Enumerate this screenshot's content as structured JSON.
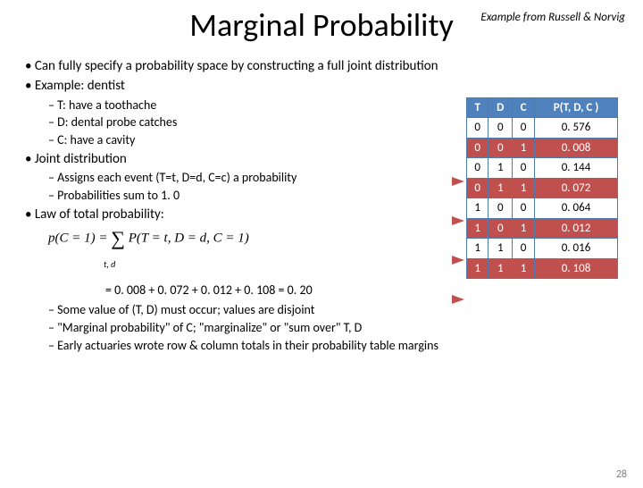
{
  "attribution": "Example from Russell & Norvig",
  "title": "Marginal Probability",
  "bullets": {
    "b1": "Can fully specify a probability space by constructing a full joint distribution",
    "b2": "Example: dentist",
    "b2a": "T: have a toothache",
    "b2b": "D: dental probe catches",
    "b2c": "C: have a cavity",
    "b3": "Joint distribution",
    "b3a": "Assigns each event (T=t, D=d, C=c) a probability",
    "b3b": "Probabilities sum to 1. 0",
    "b4": "Law of total probability:"
  },
  "formula": {
    "lhs": "p(C = 1) = ",
    "sum_sub": "t, d",
    "rhs": "P(T = t, D = d, C = 1)"
  },
  "calc": "=  0. 008 + 0. 072 + 0. 012 + 0. 108     = 0. 20",
  "bottom": {
    "c1": "Some value of (T, D) must occur; values are disjoint",
    "c2": "\"Marginal probability\" of C;  \"marginalize\" or \"sum over\" T, D",
    "c3": "Early actuaries wrote row & column totals in their probability table margins"
  },
  "table": {
    "headers": [
      "T",
      "D",
      "C",
      "P(T, D, C )"
    ],
    "rows": [
      {
        "cells": [
          "0",
          "0",
          "0",
          "0. 576"
        ],
        "hl": false
      },
      {
        "cells": [
          "0",
          "0",
          "1",
          "0. 008"
        ],
        "hl": true
      },
      {
        "cells": [
          "0",
          "1",
          "0",
          "0. 144"
        ],
        "hl": false
      },
      {
        "cells": [
          "0",
          "1",
          "1",
          "0. 072"
        ],
        "hl": true
      },
      {
        "cells": [
          "1",
          "0",
          "0",
          "0. 064"
        ],
        "hl": false
      },
      {
        "cells": [
          "1",
          "0",
          "1",
          "0. 012"
        ],
        "hl": true
      },
      {
        "cells": [
          "1",
          "1",
          "0",
          "0. 016"
        ],
        "hl": false
      },
      {
        "cells": [
          "1",
          "1",
          "1",
          "0. 108"
        ],
        "hl": true
      }
    ],
    "header_bg": "#4f81bd",
    "highlight_bg": "#c0504d",
    "border_color": "#4e7ab2"
  },
  "page_number": "28"
}
